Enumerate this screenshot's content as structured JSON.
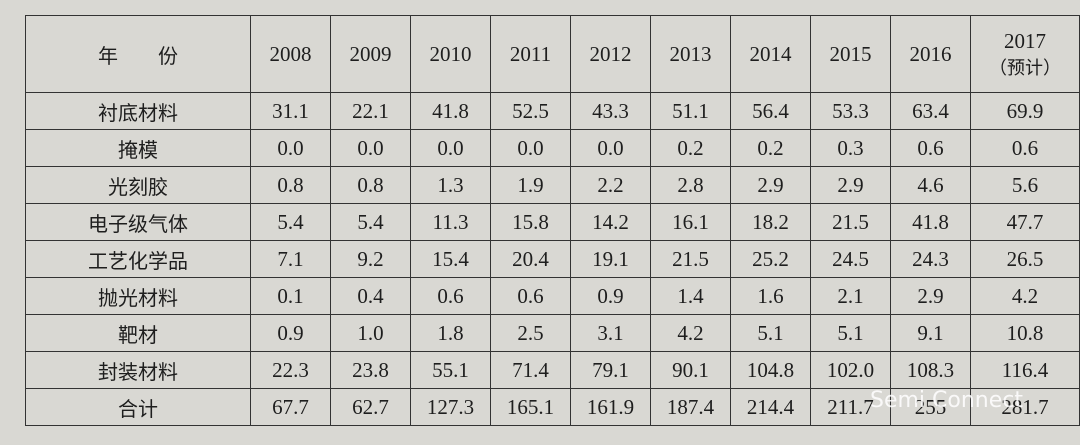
{
  "table": {
    "header": {
      "label": "年　　份",
      "years": [
        "2008",
        "2009",
        "2010",
        "2011",
        "2012",
        "2013",
        "2014",
        "2015",
        "2016",
        "2017"
      ],
      "last_note": "（预计）"
    },
    "rows": [
      {
        "label": "衬底材料",
        "values": [
          "31.1",
          "22.1",
          "41.8",
          "52.5",
          "43.3",
          "51.1",
          "56.4",
          "53.3",
          "63.4",
          "69.9"
        ]
      },
      {
        "label": "掩模",
        "values": [
          "0.0",
          "0.0",
          "0.0",
          "0.0",
          "0.0",
          "0.2",
          "0.2",
          "0.3",
          "0.6",
          "0.6"
        ]
      },
      {
        "label": "光刻胶",
        "values": [
          "0.8",
          "0.8",
          "1.3",
          "1.9",
          "2.2",
          "2.8",
          "2.9",
          "2.9",
          "4.6",
          "5.6"
        ]
      },
      {
        "label": "电子级气体",
        "values": [
          "5.4",
          "5.4",
          "11.3",
          "15.8",
          "14.2",
          "16.1",
          "18.2",
          "21.5",
          "41.8",
          "47.7"
        ]
      },
      {
        "label": "工艺化学品",
        "values": [
          "7.1",
          "9.2",
          "15.4",
          "20.4",
          "19.1",
          "21.5",
          "25.2",
          "24.5",
          "24.3",
          "26.5"
        ]
      },
      {
        "label": "抛光材料",
        "values": [
          "0.1",
          "0.4",
          "0.6",
          "0.6",
          "0.9",
          "1.4",
          "1.6",
          "2.1",
          "2.9",
          "4.2"
        ]
      },
      {
        "label": "靶材",
        "values": [
          "0.9",
          "1.0",
          "1.8",
          "2.5",
          "3.1",
          "4.2",
          "5.1",
          "5.1",
          "9.1",
          "10.8"
        ]
      },
      {
        "label": "封装材料",
        "values": [
          "22.3",
          "23.8",
          "55.1",
          "71.4",
          "79.1",
          "90.1",
          "104.8",
          "102.0",
          "108.3",
          "116.4"
        ]
      },
      {
        "label": "合计",
        "values": [
          "67.7",
          "62.7",
          "127.3",
          "165.1",
          "161.9",
          "187.4",
          "214.4",
          "211.7",
          "255",
          "281.7"
        ]
      }
    ],
    "watermark": "Semi Connect"
  }
}
